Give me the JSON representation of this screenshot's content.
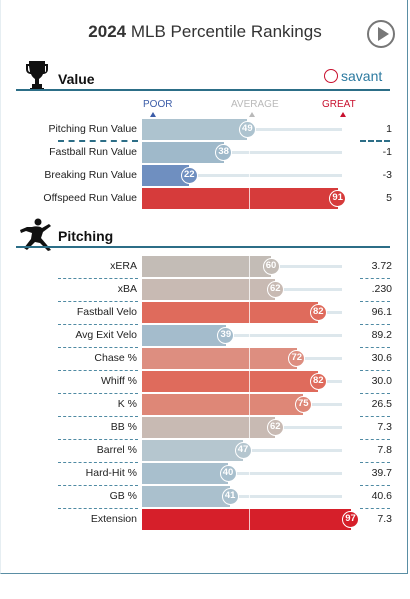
{
  "title": {
    "year": "2024",
    "text": "MLB Percentile Rankings"
  },
  "value_section": {
    "title": "Value",
    "brand": "savant"
  },
  "scale": {
    "poor": "POOR",
    "average": "AVERAGE",
    "great": "GREAT",
    "poor_color": "#3b5ca8",
    "average_color": "#b9b9b9",
    "great_color": "#c8102e"
  },
  "pitching_section": {
    "title": "Pitching"
  },
  "value_rows": [
    {
      "label": "Pitching Run Value",
      "percentile": "49",
      "value": "1",
      "color": "#adc3cf"
    },
    {
      "label": "Fastball Run Value",
      "percentile": "38",
      "value": "-1",
      "color": "#9fb9ca"
    },
    {
      "label": "Breaking Run Value",
      "percentile": "22",
      "value": "-3",
      "color": "#6f8fc0"
    },
    {
      "label": "Offspeed Run Value",
      "percentile": "91",
      "value": "5",
      "color": "#d63b3b"
    }
  ],
  "pitching_rows": [
    {
      "label": "xERA",
      "percentile": "60",
      "value": "3.72",
      "color": "#c3bcb6"
    },
    {
      "label": "xBA",
      "percentile": "62",
      "value": ".230",
      "color": "#c8bab3"
    },
    {
      "label": "Fastball Velo",
      "percentile": "82",
      "value": "96.1",
      "color": "#df6b5c"
    },
    {
      "label": "Avg Exit Velo",
      "percentile": "39",
      "value": "89.2",
      "color": "#a4bccc"
    },
    {
      "label": "Chase %",
      "percentile": "72",
      "value": "30.6",
      "color": "#dd8e80"
    },
    {
      "label": "Whiff %",
      "percentile": "82",
      "value": "30.0",
      "color": "#df6b5c"
    },
    {
      "label": "K %",
      "percentile": "75",
      "value": "26.5",
      "color": "#de8777"
    },
    {
      "label": "BB %",
      "percentile": "62",
      "value": "7.3",
      "color": "#c8bab3"
    },
    {
      "label": "Barrel %",
      "percentile": "47",
      "value": "7.8",
      "color": "#b5c6cf"
    },
    {
      "label": "Hard-Hit %",
      "percentile": "40",
      "value": "39.7",
      "color": "#a8bfcd"
    },
    {
      "label": "GB %",
      "percentile": "41",
      "value": "40.6",
      "color": "#aac0cd"
    },
    {
      "label": "Extension",
      "percentile": "97",
      "value": "7.3",
      "color": "#d61f2a"
    }
  ]
}
